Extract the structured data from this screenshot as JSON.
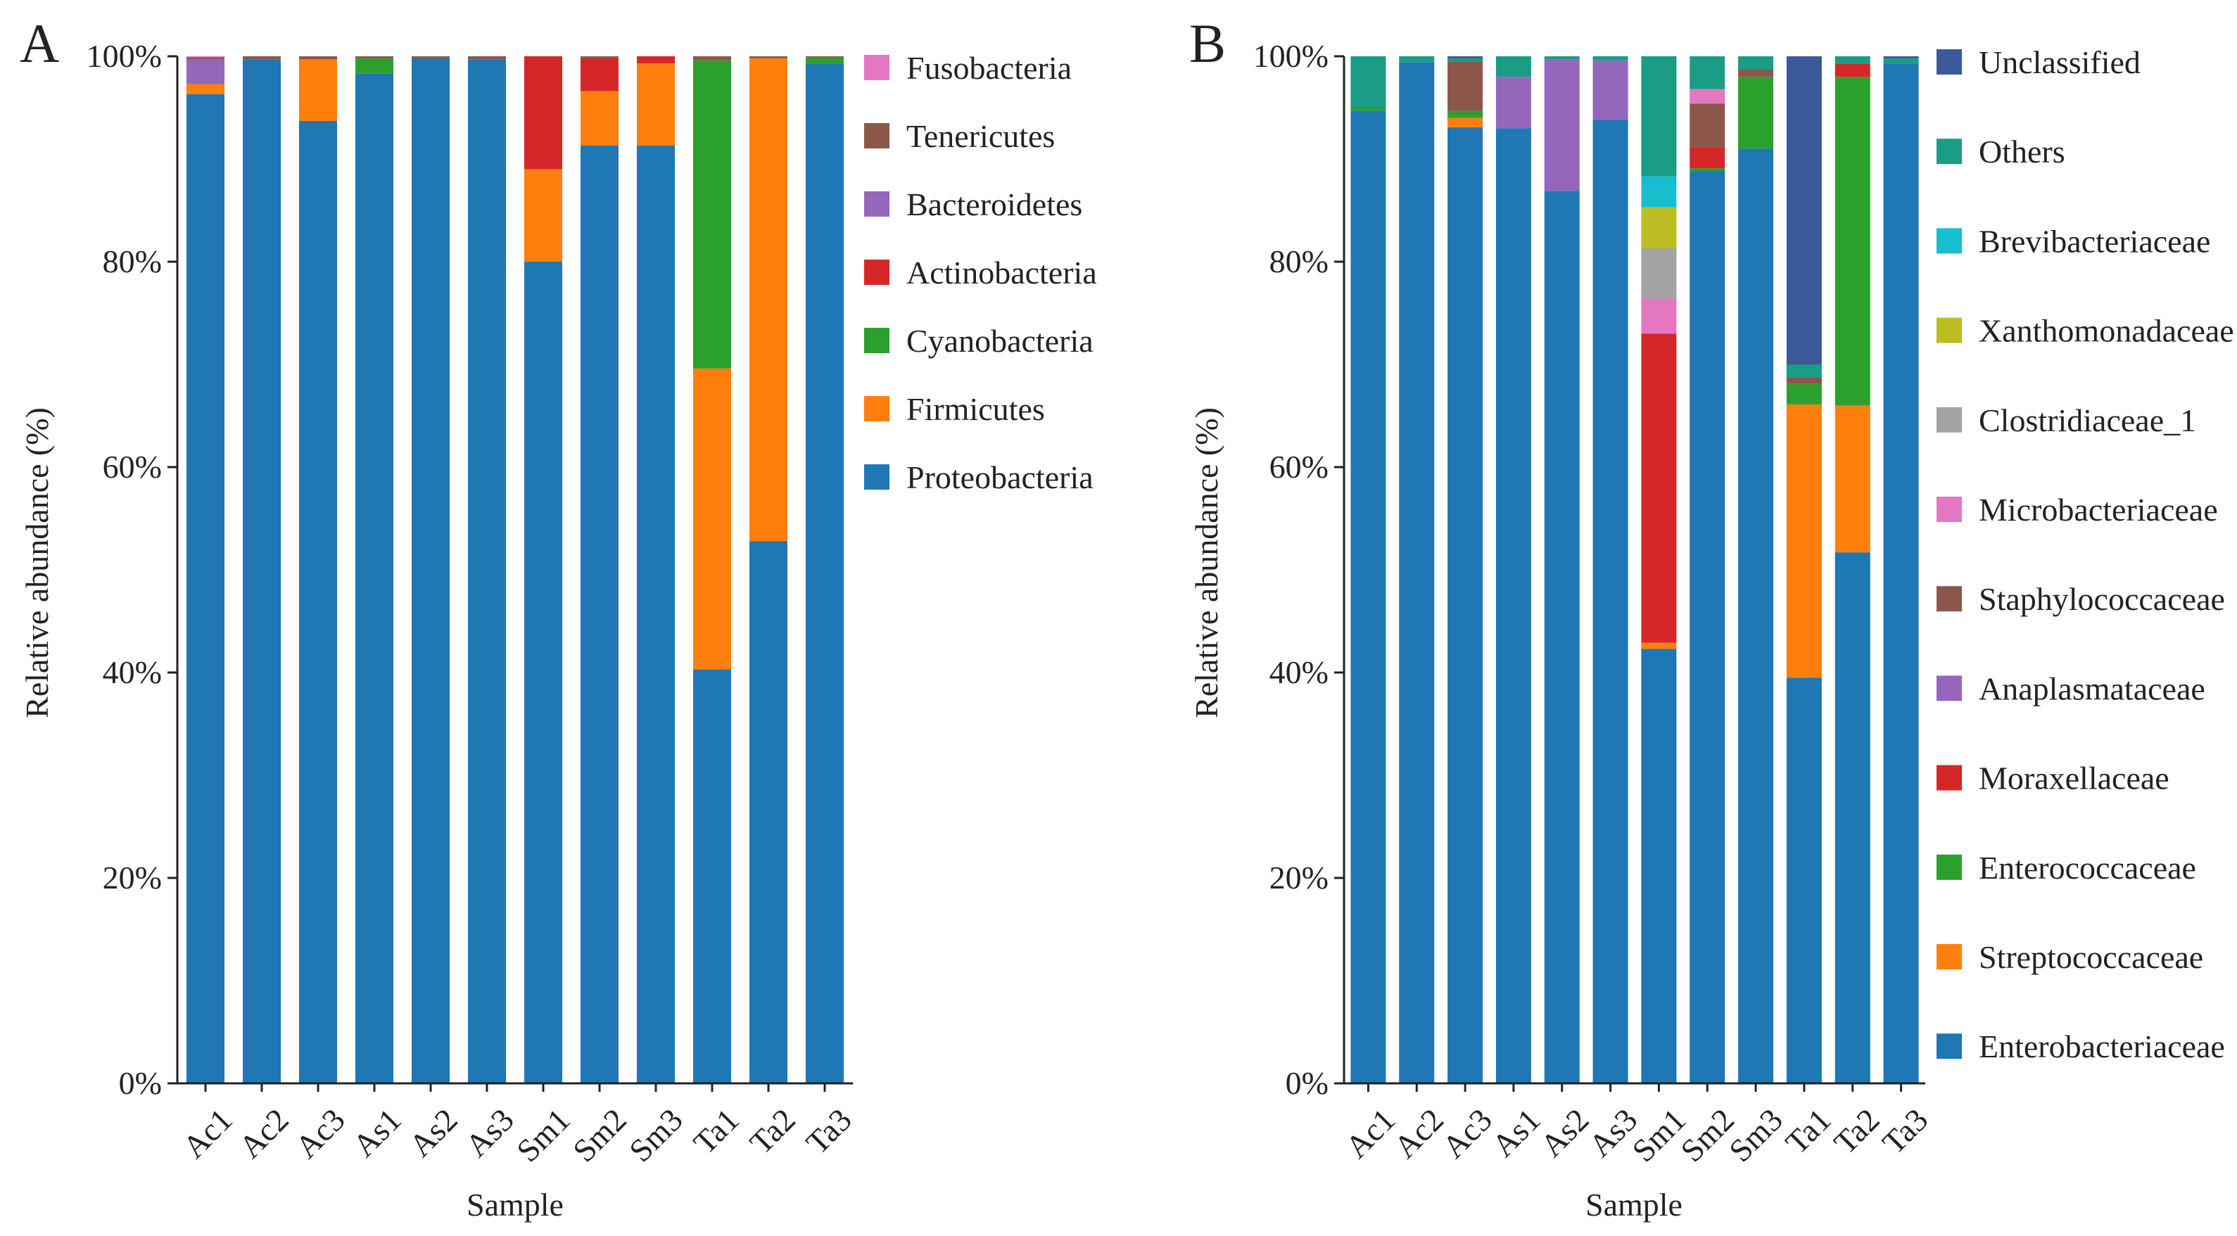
{
  "chart_data": [
    {
      "type": "bar",
      "stacked": true,
      "panel_label": "A",
      "categories": [
        "Ac1",
        "Ac2",
        "Ac3",
        "As1",
        "As2",
        "As3",
        "Sm1",
        "Sm2",
        "Sm3",
        "Ta1",
        "Ta2",
        "Ta3"
      ],
      "xlabel": "Sample",
      "ylabel": "Relative abundance (%)",
      "ylim": [
        0,
        100
      ],
      "yticks": [
        "0%",
        "20%",
        "40%",
        "60%",
        "80%",
        "100%"
      ],
      "legend_position": "right",
      "series": [
        {
          "name": "Proteobacteria",
          "color": "#1f77b4",
          "values": [
            96.3,
            99.7,
            93.7,
            98.3,
            99.8,
            99.7,
            80.0,
            91.3,
            91.3,
            40.3,
            52.8,
            99.3
          ]
        },
        {
          "name": "Firmicutes",
          "color": "#ff7f0e",
          "values": [
            1.0,
            0,
            6.0,
            0,
            0,
            0,
            9.0,
            5.3,
            8.0,
            29.3,
            47.0,
            0
          ]
        },
        {
          "name": "Cyanobacteria",
          "color": "#2ca02c",
          "values": [
            0,
            0,
            0,
            1.5,
            0,
            0,
            0,
            0,
            0,
            30.0,
            0,
            0.6
          ]
        },
        {
          "name": "Actinobacteria",
          "color": "#d62728",
          "values": [
            0,
            0,
            0,
            0,
            0,
            0,
            11.0,
            3.2,
            0.7,
            0,
            0,
            0
          ]
        },
        {
          "name": "Bacteroidetes",
          "color": "#9467bd",
          "values": [
            2.4,
            0,
            0,
            0,
            0,
            0,
            0,
            0,
            0,
            0,
            0,
            0
          ]
        },
        {
          "name": "Tenericutes",
          "color": "#8c564b",
          "values": [
            0.2,
            0.3,
            0.3,
            0.2,
            0.2,
            0.3,
            0,
            0.2,
            0,
            0.4,
            0.2,
            0.1
          ]
        },
        {
          "name": "Fusobacteria",
          "color": "#e377c2",
          "values": [
            0.1,
            0,
            0,
            0,
            0,
            0,
            0,
            0,
            0,
            0,
            0,
            0
          ]
        }
      ]
    },
    {
      "type": "bar",
      "stacked": true,
      "panel_label": "B",
      "categories": [
        "Ac1",
        "Ac2",
        "Ac3",
        "As1",
        "As2",
        "As3",
        "Sm1",
        "Sm2",
        "Sm3",
        "Ta1",
        "Ta2",
        "Ta3"
      ],
      "xlabel": "Sample",
      "ylabel": "Relative abundance (%)",
      "ylim": [
        0,
        100
      ],
      "yticks": [
        "0%",
        "20%",
        "40%",
        "60%",
        "80%",
        "100%"
      ],
      "legend_position": "right",
      "series": [
        {
          "name": "Enterobacteriaceae",
          "color": "#1f77b4",
          "values": [
            94.7,
            99.4,
            93.1,
            93.0,
            86.9,
            93.8,
            42.3,
            88.8,
            91.0,
            39.5,
            51.7,
            99.3
          ]
        },
        {
          "name": "Streptococcaceae",
          "color": "#ff7f0e",
          "values": [
            0,
            0,
            0.9,
            0,
            0,
            0,
            0.6,
            0,
            0,
            26.6,
            14.3,
            0
          ]
        },
        {
          "name": "Enterococcaceae",
          "color": "#2ca02c",
          "values": [
            0.3,
            0,
            0.7,
            0,
            0,
            0,
            0,
            0.3,
            7.0,
            2.0,
            32.0,
            0
          ]
        },
        {
          "name": "Moraxellaceae",
          "color": "#d62728",
          "values": [
            0,
            0,
            0,
            0,
            0,
            0,
            30.1,
            2.0,
            0,
            0,
            1.3,
            0
          ]
        },
        {
          "name": "Anaplasmataceae",
          "color": "#9467bd",
          "values": [
            0,
            0,
            0,
            5.0,
            12.8,
            5.8,
            0,
            0,
            0,
            0,
            0,
            0
          ]
        },
        {
          "name": "Staphylococcaceae",
          "color": "#8c564b",
          "values": [
            0,
            0,
            4.8,
            0,
            0,
            0,
            0,
            4.3,
            0.7,
            0.6,
            0,
            0
          ]
        },
        {
          "name": "Microbacteriaceae",
          "color": "#e377c2",
          "values": [
            0,
            0,
            0,
            0,
            0,
            0,
            3.4,
            1.4,
            0,
            0,
            0,
            0
          ]
        },
        {
          "name": "Clostridiaceae_1",
          "color": "#a3a3a3",
          "values": [
            0,
            0,
            0,
            0,
            0,
            0,
            4.9,
            0,
            0,
            0,
            0,
            0
          ]
        },
        {
          "name": "Xanthomonadaceae",
          "color": "#bcbd22",
          "values": [
            0,
            0,
            0,
            0,
            0,
            0,
            4.0,
            0,
            0,
            0,
            0,
            0
          ]
        },
        {
          "name": "Brevibacteriaceae",
          "color": "#17becf",
          "values": [
            0,
            0,
            0,
            0,
            0,
            0,
            3.0,
            0,
            0,
            0,
            0,
            0
          ]
        },
        {
          "name": "Others",
          "color": "#1a9c85",
          "values": [
            5.0,
            0.6,
            0.3,
            2.0,
            0.3,
            0.4,
            11.7,
            3.2,
            1.3,
            1.3,
            0.7,
            0.5
          ]
        },
        {
          "name": "Unclassified",
          "color": "#3b5998",
          "values": [
            0,
            0,
            0.2,
            0,
            0,
            0,
            0,
            0,
            0,
            30.0,
            0,
            0.2
          ]
        }
      ]
    }
  ]
}
